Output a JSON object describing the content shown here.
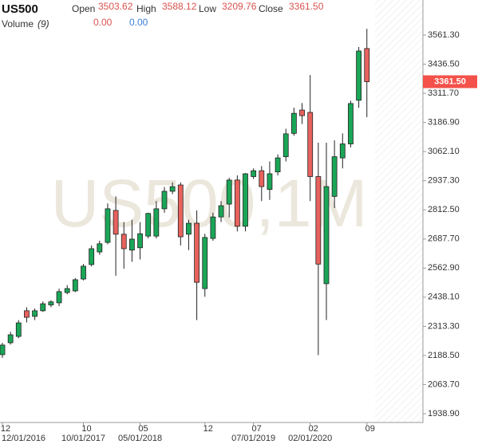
{
  "header": {
    "symbol": "US500",
    "open_name": "Open",
    "open": "3503.62",
    "high_name": "High",
    "high": "3588.12",
    "low_name": "Low",
    "low": "3209.76",
    "close_name": "Close",
    "close": "3361.50",
    "volume_name": "Volume",
    "volume_param": "(9)",
    "volume_a": "0.00",
    "volume_b": "0.00"
  },
  "chart_data": {
    "type": "candlestick",
    "watermark": "US500,1M",
    "up_color": "#1aa657",
    "down_color": "#e8625d",
    "categories": [
      "12",
      null,
      null,
      null,
      null,
      null,
      null,
      null,
      null,
      null,
      "10",
      null,
      null,
      null,
      null,
      null,
      null,
      "05",
      null,
      null,
      null,
      null,
      null,
      null,
      null,
      "12",
      null,
      null,
      null,
      null,
      null,
      "07",
      null,
      null,
      null,
      null,
      null,
      null,
      "02",
      null,
      null,
      null,
      null,
      null,
      null,
      "09"
    ],
    "dates": [
      "12/01/2016",
      null,
      null,
      null,
      null,
      null,
      null,
      null,
      null,
      null,
      "10/01/2017",
      null,
      null,
      null,
      null,
      null,
      null,
      "05/01/2018",
      null,
      null,
      null,
      null,
      null,
      null,
      null,
      null,
      null,
      null,
      null,
      null,
      null,
      "07/01/2019",
      null,
      null,
      null,
      null,
      null,
      null,
      "02/01/2020",
      null,
      null,
      null,
      null,
      null,
      null,
      null
    ],
    "open": [
      2192,
      2243,
      2270,
      2380,
      2356,
      2380,
      2405,
      2414,
      2458,
      2465,
      2516,
      2578,
      2632,
      2673,
      2810,
      2708,
      2640,
      2650,
      2700,
      2700,
      2817,
      2892,
      2919,
      2708,
      2755,
      2475,
      2690,
      2782,
      2837,
      2940,
      2742,
      2955,
      2980,
      2900,
      2975,
      3040,
      3140,
      3240,
      3230,
      2955,
      2496,
      2870,
      3035,
      3095,
      3282,
      3503.62
    ],
    "high": [
      2243,
      2290,
      2340,
      2395,
      2390,
      2420,
      2425,
      2475,
      2490,
      2520,
      2580,
      2660,
      2680,
      2840,
      2870,
      2760,
      2770,
      2760,
      2800,
      2850,
      2910,
      2930,
      2930,
      2770,
      2810,
      2710,
      2800,
      2850,
      2950,
      2960,
      2970,
      2990,
      3000,
      3020,
      3050,
      3160,
      3250,
      3270,
      3390,
      3100,
      3100,
      3110,
      3140,
      3280,
      3510,
      3588.12
    ],
    "low": [
      2178,
      2235,
      2262,
      2330,
      2340,
      2375,
      2395,
      2400,
      2450,
      2460,
      2510,
      2570,
      2620,
      2665,
      2530,
      2560,
      2590,
      2600,
      2690,
      2690,
      2800,
      2880,
      2660,
      2640,
      2340,
      2440,
      2680,
      2760,
      2780,
      2720,
      2720,
      2945,
      2850,
      2855,
      2960,
      3020,
      3130,
      3180,
      2850,
      2190,
      2340,
      2820,
      2990,
      3080,
      3250,
      3209.76
    ],
    "close": [
      2233,
      2277,
      2328,
      2352,
      2380,
      2410,
      2418,
      2462,
      2475,
      2513,
      2571,
      2646,
      2667,
      2817,
      2708,
      2646,
      2687,
      2710,
      2797,
      2817,
      2892,
      2912,
      2697,
      2755,
      2502,
      2694,
      2782,
      2830,
      2940,
      2742,
      2967,
      2980,
      2912,
      2967,
      3035,
      3138,
      3226,
      3216,
      2955,
      2580,
      2912,
      3040,
      3095,
      3268,
      3493,
      3361.5
    ],
    "ylim": [
      1901.3,
      3711.6
    ],
    "yticks": [
      {
        "value": 1938.9,
        "label": "1938.90"
      },
      {
        "value": 2063.7,
        "label": "2063.70"
      },
      {
        "value": 2188.5,
        "label": "2188.50"
      },
      {
        "value": 2313.3,
        "label": "2313.30"
      },
      {
        "value": 2438.1,
        "label": "2438.10"
      },
      {
        "value": 2562.9,
        "label": "2562.90"
      },
      {
        "value": 2687.7,
        "label": "2687.70"
      },
      {
        "value": 2812.5,
        "label": "2812.50"
      },
      {
        "value": 2937.3,
        "label": "2937.30"
      },
      {
        "value": 3062.1,
        "label": "3062.10"
      },
      {
        "value": 3186.9,
        "label": "3186.90"
      },
      {
        "value": 3311.7,
        "label": "3311.70"
      },
      {
        "value": 3436.5,
        "label": "3436.50"
      },
      {
        "value": 3561.3,
        "label": "3561.30"
      }
    ],
    "last_price": {
      "value": 3361.5,
      "label": "3361.50",
      "color": "#f4514a"
    }
  }
}
